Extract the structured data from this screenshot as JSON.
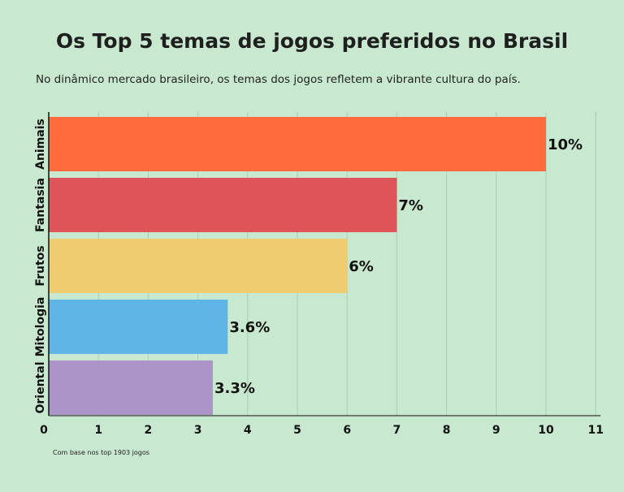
{
  "title": "Os Top 5 temas de jogos preferidos no Brasil",
  "subtitle": "No dinâmico mercado brasileiro, os temas dos jogos refletem a vibrante cultura do país.",
  "footnote": "Com base nos top 1903 jogos",
  "chart_data": {
    "type": "bar",
    "orientation": "horizontal",
    "title": "Os Top 5 temas de jogos preferidos no Brasil",
    "xlabel": "",
    "ylabel": "",
    "xlim": [
      0,
      11
    ],
    "xticks": [
      0,
      1,
      2,
      3,
      4,
      5,
      6,
      7,
      8,
      9,
      10,
      11
    ],
    "grid": "vertical",
    "categories": [
      "Animais",
      "Fantasia",
      "Frutos",
      "Mitologia",
      "Oriental"
    ],
    "values": [
      10,
      7,
      6,
      3.6,
      3.3
    ],
    "labels": [
      "10%",
      "7%",
      "6%",
      "3.6%",
      "3.3%"
    ],
    "colors": [
      "#ff6b3d",
      "#df5458",
      "#efcc6f",
      "#5fb6e6",
      "#ac94c8"
    ]
  }
}
